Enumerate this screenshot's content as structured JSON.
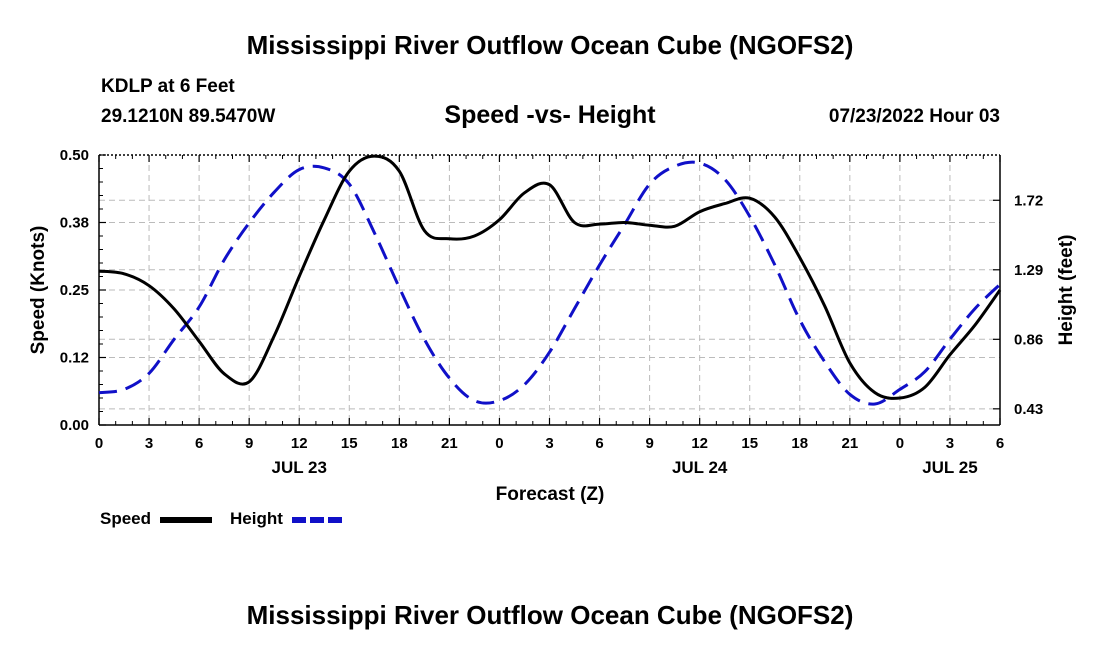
{
  "page_title": "Mississippi River Outflow Ocean Cube (NGOFS2)",
  "footer_title": "Mississippi River Outflow Ocean Cube (NGOFS2)",
  "station": "KDLP at 6 Feet",
  "coords": "29.1210N  89.5470W",
  "datetime": "07/23/2022 Hour 03",
  "colors": {
    "speed": "#000000",
    "height": "#1010c8",
    "grid": "#bbbbbb"
  },
  "chart_data": {
    "type": "line",
    "title": "Speed -vs- Height",
    "xlabel": "Forecast (Z)",
    "ylabel": "Speed (Knots)",
    "y2label": "Height (feet)",
    "xlim": [
      0,
      54
    ],
    "ylim": [
      0,
      0.5
    ],
    "y2lim": [
      0.33,
      2.0
    ],
    "x_ticks": [
      0,
      3,
      6,
      9,
      12,
      15,
      18,
      21,
      24,
      27,
      30,
      33,
      36,
      39,
      42,
      45,
      48,
      51,
      54
    ],
    "x_tick_labels": [
      "0",
      "3",
      "6",
      "9",
      "12",
      "15",
      "18",
      "21",
      "0",
      "3",
      "6",
      "9",
      "12",
      "15",
      "18",
      "21",
      "0",
      "3",
      "6"
    ],
    "y_ticks": [
      0.0,
      0.125,
      0.25,
      0.375,
      0.5
    ],
    "y_tick_labels": [
      "0.00",
      "0.12",
      "0.25",
      "0.38",
      "0.50"
    ],
    "y2_ticks": [
      0.43,
      0.86,
      1.29,
      1.72
    ],
    "y2_tick_labels": [
      "0.43",
      "0.86",
      "1.29",
      "1.72"
    ],
    "date_labels": [
      {
        "label": "JUL 23",
        "x": 12
      },
      {
        "label": "JUL 24",
        "x": 36
      },
      {
        "label": "JUL 25",
        "x": 51
      }
    ],
    "x": [
      0,
      1.5,
      3,
      4.5,
      6,
      7.5,
      9,
      10.5,
      12,
      13.5,
      15,
      16.5,
      18,
      19.5,
      21,
      22.5,
      24,
      25.5,
      27,
      28.5,
      30,
      31.5,
      33,
      34.5,
      36,
      37.5,
      39,
      40.5,
      42,
      43.5,
      45,
      46.5,
      48,
      49.5,
      51,
      52.5,
      54
    ],
    "series": [
      {
        "name": "Speed",
        "axis": "left",
        "style": "solid",
        "values": [
          0.285,
          0.28,
          0.258,
          0.215,
          0.155,
          0.095,
          0.08,
          0.165,
          0.275,
          0.38,
          0.47,
          0.498,
          0.47,
          0.36,
          0.345,
          0.35,
          0.38,
          0.43,
          0.445,
          0.375,
          0.372,
          0.375,
          0.37,
          0.368,
          0.395,
          0.41,
          0.42,
          0.385,
          0.31,
          0.22,
          0.115,
          0.06,
          0.05,
          0.07,
          0.13,
          0.185,
          0.25
        ]
      },
      {
        "name": "Height",
        "axis": "right",
        "style": "dashed",
        "values": [
          0.53,
          0.55,
          0.65,
          0.86,
          1.06,
          1.35,
          1.58,
          1.77,
          1.91,
          1.92,
          1.82,
          1.52,
          1.18,
          0.86,
          0.62,
          0.48,
          0.48,
          0.58,
          0.78,
          1.05,
          1.32,
          1.57,
          1.82,
          1.93,
          1.95,
          1.85,
          1.62,
          1.32,
          0.98,
          0.72,
          0.52,
          0.46,
          0.55,
          0.66,
          0.86,
          1.05,
          1.2
        ]
      }
    ],
    "legend": [
      {
        "label": "Speed",
        "style": "solid"
      },
      {
        "label": "Height",
        "style": "dashed"
      }
    ]
  }
}
